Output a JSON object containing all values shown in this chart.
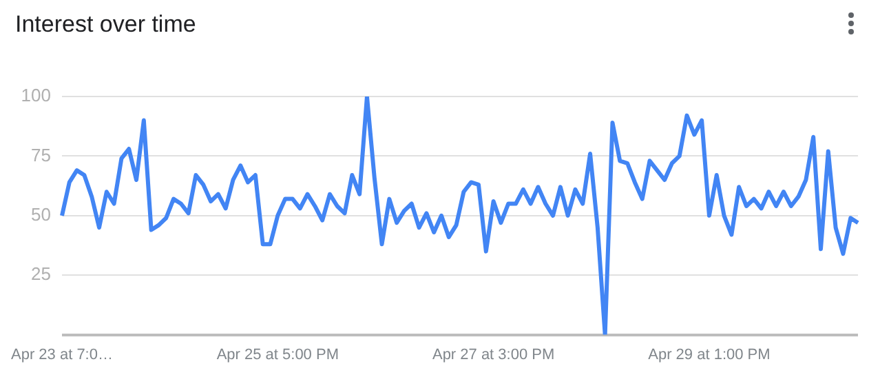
{
  "chart_data": {
    "type": "line",
    "title": "Interest over time",
    "categories": [
      "Apr 23 at 7:0…",
      null,
      null,
      null,
      null,
      null,
      null,
      null,
      null,
      null,
      null,
      null,
      null,
      null,
      null,
      null,
      null,
      null,
      null,
      null,
      null,
      null,
      null,
      null,
      null,
      null,
      null,
      null,
      null,
      "Apr 25 at 5:00 PM",
      null,
      null,
      null,
      null,
      null,
      null,
      null,
      null,
      null,
      null,
      null,
      null,
      null,
      null,
      null,
      null,
      null,
      null,
      null,
      null,
      null,
      null,
      null,
      null,
      null,
      null,
      null,
      null,
      "Apr 27 at 3:00 PM",
      null,
      null,
      null,
      null,
      null,
      null,
      null,
      null,
      null,
      null,
      null,
      null,
      null,
      null,
      null,
      null,
      null,
      null,
      null,
      null,
      null,
      null,
      null,
      null,
      null,
      null,
      null,
      null,
      "Apr 29 at 1:00 PM",
      null,
      null,
      null,
      null,
      null,
      null,
      null,
      null,
      null,
      null,
      null,
      null,
      null,
      null,
      null,
      null,
      null,
      null,
      null,
      null
    ],
    "series": [
      {
        "color": "#4285f4",
        "values": [
          50,
          64,
          69,
          67,
          58,
          45,
          60,
          55,
          74,
          78,
          65,
          90,
          44,
          46,
          49,
          57,
          55,
          51,
          67,
          63,
          56,
          59,
          53,
          65,
          71,
          64,
          67,
          38,
          38,
          50,
          57,
          57,
          53,
          59,
          54,
          48,
          59,
          54,
          51,
          67,
          59,
          100,
          66,
          38,
          57,
          47,
          52,
          55,
          45,
          51,
          43,
          50,
          41,
          46,
          60,
          64,
          63,
          35,
          56,
          47,
          55,
          55,
          61,
          55,
          62,
          55,
          50,
          62,
          50,
          61,
          55,
          76,
          45,
          0,
          89,
          73,
          72,
          64,
          57,
          73,
          69,
          65,
          72,
          75,
          92,
          84,
          90,
          50,
          67,
          50,
          42,
          62,
          54,
          57,
          53,
          60,
          54,
          60,
          54,
          58,
          65,
          83,
          36,
          77,
          45,
          34,
          49,
          47
        ]
      }
    ],
    "ylim": [
      0,
      100
    ],
    "yticks": [
      {
        "value": 0,
        "label": null
      },
      25,
      50,
      75,
      100
    ],
    "grid": "y",
    "legend": false,
    "marker": "none",
    "line_style": "solid"
  }
}
